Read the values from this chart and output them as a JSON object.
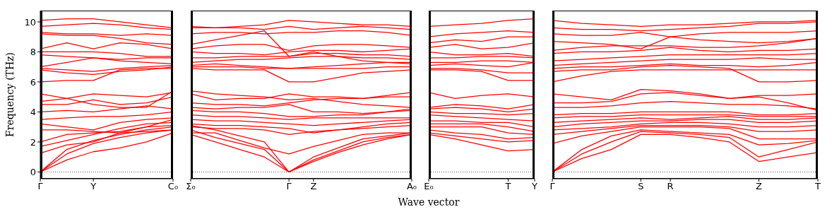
{
  "chart_data": [
    {
      "type": "line",
      "ylabel": "Frequency (THz)",
      "marker": "none",
      "line_style": "solid",
      "categories": [
        "Γ",
        null,
        "Y",
        null,
        null,
        "C₀"
      ],
      "ylim": [
        -0.45,
        10.75
      ],
      "yticks": [
        0,
        2,
        4,
        6,
        8,
        10
      ],
      "ref_lines": [
        {
          "axis": "y",
          "value": 0,
          "color": "#000000",
          "line_style": "dotted"
        }
      ],
      "series": [
        {
          "color": "#ff0000",
          "values": [
            0,
            0.8,
            1.35,
            1.6,
            2.0,
            2.6
          ]
        },
        {
          "color": "#ff0000",
          "values": [
            0,
            1.2,
            1.9,
            2.3,
            2.6,
            2.8
          ]
        },
        {
          "color": "#ff0000",
          "values": [
            0,
            1.5,
            2.1,
            2.5,
            2.8,
            3.0
          ]
        },
        {
          "color": "#ff0000",
          "values": [
            1.25,
            1.8,
            2.0,
            2.6,
            3.0,
            3.1
          ]
        },
        {
          "color": "#ff0000",
          "values": [
            1.7,
            2.1,
            2.5,
            2.9,
            3.2,
            3.3
          ]
        },
        {
          "color": "#ff0000",
          "values": [
            2.0,
            2.5,
            2.6,
            2.7,
            3.0,
            3.5
          ]
        },
        {
          "color": "#ff0000",
          "values": [
            2.8,
            2.8,
            2.7,
            2.6,
            2.7,
            2.8
          ]
        },
        {
          "color": "#ff0000",
          "values": [
            3.2,
            3.0,
            2.8,
            3.3,
            3.5,
            3.6
          ]
        },
        {
          "color": "#ff0000",
          "values": [
            3.5,
            3.6,
            3.7,
            3.7,
            3.8,
            4.0
          ]
        },
        {
          "color": "#ff0000",
          "values": [
            4.0,
            4.1,
            4.0,
            4.2,
            4.4,
            4.2
          ]
        },
        {
          "color": "#ff0000",
          "values": [
            4.5,
            4.5,
            4.8,
            4.5,
            4.6,
            5.0
          ]
        },
        {
          "color": "#ff0000",
          "values": [
            4.7,
            4.9,
            5.2,
            5.1,
            5.0,
            5.3
          ]
        },
        {
          "color": "#ff0000",
          "values": [
            5.2,
            4.9,
            4.5,
            4.3,
            4.3,
            5.4
          ]
        },
        {
          "color": "#ff0000",
          "values": [
            6.0,
            6.1,
            6.1,
            6.8,
            6.9,
            6.9
          ]
        },
        {
          "color": "#ff0000",
          "values": [
            6.8,
            6.6,
            6.5,
            6.7,
            6.8,
            7.0
          ]
        },
        {
          "color": "#ff0000",
          "values": [
            6.9,
            6.8,
            6.7,
            6.9,
            7.0,
            7.1
          ]
        },
        {
          "color": "#ff0000",
          "values": [
            7.0,
            7.3,
            7.6,
            7.4,
            7.3,
            7.2
          ]
        },
        {
          "color": "#ff0000",
          "values": [
            7.8,
            7.7,
            7.6,
            7.5,
            7.6,
            7.6
          ]
        },
        {
          "color": "#ff0000",
          "values": [
            8.0,
            8.0,
            8.0,
            7.9,
            7.7,
            7.7
          ]
        },
        {
          "color": "#ff0000",
          "values": [
            8.2,
            8.6,
            8.2,
            8.6,
            8.5,
            8.2
          ]
        },
        {
          "color": "#ff0000",
          "values": [
            9.2,
            9.1,
            9.1,
            8.9,
            8.6,
            8.5
          ]
        },
        {
          "color": "#ff0000",
          "values": [
            9.3,
            9.2,
            9.2,
            9.1,
            9.2,
            9.1
          ]
        },
        {
          "color": "#ff0000",
          "values": [
            9.7,
            9.8,
            9.9,
            9.8,
            9.6,
            9.5
          ]
        },
        {
          "color": "#ff0000",
          "values": [
            10.1,
            10.2,
            10.2,
            10.0,
            9.8,
            9.6
          ]
        }
      ]
    },
    {
      "type": "line",
      "xlabel": "Wave vector",
      "marker": "none",
      "line_style": "solid",
      "tick_labels": "x",
      "categories": [
        "Σ₀",
        null,
        null,
        null,
        "Γ",
        "Z",
        null,
        null,
        null,
        "A₀"
      ],
      "ylim": [
        -0.45,
        10.75
      ],
      "yticks": [
        0,
        2,
        4,
        6,
        8,
        10
      ],
      "ref_lines": [
        {
          "axis": "y",
          "value": 0,
          "color": "#000000",
          "line_style": "dotted"
        }
      ],
      "series": [
        {
          "color": "#ff0000",
          "values": [
            2.5,
            2.0,
            1.5,
            1.0,
            0,
            0.8,
            1.4,
            2.0,
            2.3,
            2.5
          ]
        },
        {
          "color": "#ff0000",
          "values": [
            2.8,
            2.3,
            1.9,
            1.5,
            0,
            1.0,
            1.6,
            2.2,
            2.4,
            2.6
          ]
        },
        {
          "color": "#ff0000",
          "values": [
            3.1,
            2.8,
            2.4,
            2.0,
            0,
            0.7,
            1.3,
            1.8,
            2.2,
            2.5
          ]
        },
        {
          "color": "#ff0000",
          "values": [
            2.6,
            2.6,
            2.1,
            1.6,
            1.2,
            1.7,
            2.1,
            2.5,
            2.6,
            2.6
          ]
        },
        {
          "color": "#ff0000",
          "values": [
            3.0,
            2.9,
            2.9,
            2.8,
            2.5,
            2.7,
            2.8,
            2.9,
            3.0,
            3.1
          ]
        },
        {
          "color": "#ff0000",
          "values": [
            3.2,
            3.1,
            3.1,
            3.0,
            2.9,
            2.6,
            2.8,
            3.0,
            3.2,
            3.3
          ]
        },
        {
          "color": "#ff0000",
          "values": [
            3.5,
            3.4,
            3.4,
            3.3,
            3.2,
            3.1,
            3.2,
            3.3,
            3.4,
            3.5
          ]
        },
        {
          "color": "#ff0000",
          "values": [
            3.8,
            3.7,
            3.7,
            3.6,
            3.5,
            3.6,
            3.6,
            3.6,
            3.6,
            3.6
          ]
        },
        {
          "color": "#ff0000",
          "values": [
            4.1,
            4.0,
            4.0,
            3.9,
            3.7,
            3.7,
            3.8,
            3.8,
            4.0,
            4.2
          ]
        },
        {
          "color": "#ff0000",
          "values": [
            4.3,
            4.2,
            4.3,
            4.3,
            4.5,
            4.0,
            4.0,
            3.9,
            4.0,
            4.1
          ]
        },
        {
          "color": "#ff0000",
          "values": [
            4.6,
            4.5,
            4.5,
            4.4,
            4.6,
            4.8,
            4.9,
            4.9,
            5.0,
            5.0
          ]
        },
        {
          "color": "#ff0000",
          "values": [
            5.2,
            4.8,
            4.9,
            4.9,
            5.2,
            5.0,
            5.0,
            4.9,
            5.1,
            5.3
          ]
        },
        {
          "color": "#ff0000",
          "values": [
            5.4,
            5.2,
            5.1,
            5.0,
            4.8,
            4.9,
            4.7,
            4.5,
            4.4,
            4.3
          ]
        },
        {
          "color": "#ff0000",
          "values": [
            6.9,
            6.8,
            6.8,
            6.8,
            6.0,
            6.0,
            6.3,
            6.6,
            6.7,
            6.8
          ]
        },
        {
          "color": "#ff0000",
          "values": [
            7.0,
            7.0,
            7.0,
            6.9,
            6.9,
            6.9,
            6.9,
            6.9,
            7.0,
            7.0
          ]
        },
        {
          "color": "#ff0000",
          "values": [
            7.1,
            7.2,
            7.1,
            7.0,
            6.9,
            7.0,
            7.1,
            7.2,
            7.3,
            7.3
          ]
        },
        {
          "color": "#ff0000",
          "values": [
            7.3,
            7.4,
            7.5,
            7.5,
            7.6,
            7.7,
            7.7,
            7.6,
            7.6,
            7.5
          ]
        },
        {
          "color": "#ff0000",
          "values": [
            7.6,
            7.6,
            7.7,
            7.7,
            7.7,
            7.9,
            7.9,
            7.8,
            7.8,
            7.7
          ]
        },
        {
          "color": "#ff0000",
          "values": [
            8.0,
            7.9,
            7.9,
            7.8,
            8.0,
            8.1,
            8.1,
            8.0,
            8.1,
            8.2
          ]
        },
        {
          "color": "#ff0000",
          "values": [
            8.2,
            8.4,
            8.5,
            8.5,
            8.1,
            8.4,
            8.5,
            8.5,
            8.4,
            8.3
          ]
        },
        {
          "color": "#ff0000",
          "values": [
            8.5,
            8.8,
            9.1,
            9.4,
            7.7,
            8.0,
            7.7,
            7.4,
            7.3,
            7.2
          ]
        },
        {
          "color": "#ff0000",
          "values": [
            9.2,
            9.3,
            9.3,
            9.2,
            9.3,
            9.3,
            9.4,
            9.4,
            9.3,
            9.1
          ]
        },
        {
          "color": "#ff0000",
          "values": [
            9.6,
            9.6,
            9.6,
            9.5,
            9.7,
            9.5,
            9.6,
            9.7,
            9.6,
            9.5
          ]
        },
        {
          "color": "#ff0000",
          "values": [
            9.7,
            9.6,
            9.7,
            9.8,
            10.1,
            10.0,
            9.9,
            9.8,
            9.8,
            9.7
          ]
        }
      ]
    },
    {
      "type": "line",
      "marker": "none",
      "line_style": "solid",
      "tick_labels": "x",
      "categories": [
        "E₀",
        null,
        null,
        "T",
        "Y"
      ],
      "ylim": [
        -0.45,
        10.75
      ],
      "yticks": [
        0,
        2,
        4,
        6,
        8,
        10
      ],
      "ref_lines": [
        {
          "axis": "y",
          "value": 0,
          "color": "#000000",
          "line_style": "dotted"
        }
      ],
      "series": [
        {
          "color": "#ff0000",
          "values": [
            2.5,
            2.2,
            1.8,
            1.4,
            1.5
          ]
        },
        {
          "color": "#ff0000",
          "values": [
            2.6,
            2.4,
            2.2,
            2.0,
            2.1
          ]
        },
        {
          "color": "#ff0000",
          "values": [
            2.8,
            2.6,
            2.5,
            2.2,
            2.3
          ]
        },
        {
          "color": "#ff0000",
          "values": [
            3.0,
            3.0,
            3.0,
            2.6,
            2.5
          ]
        },
        {
          "color": "#ff0000",
          "values": [
            3.2,
            3.2,
            3.2,
            3.0,
            2.7
          ]
        },
        {
          "color": "#ff0000",
          "values": [
            3.4,
            3.4,
            3.3,
            3.3,
            3.0
          ]
        },
        {
          "color": "#ff0000",
          "values": [
            3.8,
            3.7,
            3.6,
            3.5,
            3.4
          ]
        },
        {
          "color": "#ff0000",
          "values": [
            4.0,
            3.9,
            3.9,
            3.8,
            3.9
          ]
        },
        {
          "color": "#ff0000",
          "values": [
            4.2,
            4.3,
            4.2,
            4.0,
            4.2
          ]
        },
        {
          "color": "#ff0000",
          "values": [
            4.3,
            4.5,
            4.4,
            4.2,
            4.5
          ]
        },
        {
          "color": "#ff0000",
          "values": [
            5.3,
            4.9,
            5.1,
            5.2,
            5.0
          ]
        },
        {
          "color": "#ff0000",
          "values": [
            6.8,
            6.8,
            6.7,
            6.1,
            6.1
          ]
        },
        {
          "color": "#ff0000",
          "values": [
            6.9,
            6.9,
            6.8,
            6.6,
            6.6
          ]
        },
        {
          "color": "#ff0000",
          "values": [
            7.1,
            7.2,
            7.1,
            7.0,
            7.3
          ]
        },
        {
          "color": "#ff0000",
          "values": [
            7.3,
            7.3,
            7.4,
            7.4,
            7.3
          ]
        },
        {
          "color": "#ff0000",
          "values": [
            7.6,
            7.6,
            7.7,
            7.7,
            7.6
          ]
        },
        {
          "color": "#ff0000",
          "values": [
            8.0,
            7.8,
            7.8,
            7.9,
            7.7
          ]
        },
        {
          "color": "#ff0000",
          "values": [
            8.3,
            8.5,
            8.2,
            8.3,
            8.6
          ]
        },
        {
          "color": "#ff0000",
          "values": [
            8.6,
            8.8,
            8.7,
            9.0,
            9.0
          ]
        },
        {
          "color": "#ff0000",
          "values": [
            9.0,
            9.2,
            9.3,
            9.4,
            9.3
          ]
        },
        {
          "color": "#ff0000",
          "values": [
            9.7,
            9.8,
            9.9,
            10.1,
            10.2
          ]
        }
      ]
    },
    {
      "type": "line",
      "marker": "none",
      "line_style": "solid",
      "tick_labels": "x",
      "categories": [
        "Γ",
        null,
        null,
        "S",
        "R",
        null,
        null,
        "Z",
        null,
        "T"
      ],
      "ylim": [
        -0.45,
        10.75
      ],
      "yticks": [
        0,
        2,
        4,
        6,
        8,
        10
      ],
      "ref_lines": [
        {
          "axis": "y",
          "value": 0,
          "color": "#000000",
          "line_style": "dotted"
        }
      ],
      "series": [
        {
          "color": "#ff0000",
          "values": [
            0,
            0.9,
            1.5,
            2.5,
            2.5,
            2.3,
            2.0,
            0.7,
            1.0,
            1.3
          ]
        },
        {
          "color": "#ff0000",
          "values": [
            0,
            1.2,
            2.0,
            2.7,
            2.6,
            2.5,
            2.3,
            1.0,
            1.5,
            2.0
          ]
        },
        {
          "color": "#ff0000",
          "values": [
            0,
            1.5,
            2.4,
            2.8,
            2.7,
            2.6,
            2.5,
            1.8,
            1.9,
            2.1
          ]
        },
        {
          "color": "#ff0000",
          "values": [
            1.9,
            2.4,
            2.7,
            3.0,
            3.0,
            3.0,
            2.9,
            2.2,
            2.2,
            2.2
          ]
        },
        {
          "color": "#ff0000",
          "values": [
            2.5,
            2.7,
            2.9,
            3.1,
            3.1,
            3.1,
            3.0,
            2.7,
            2.7,
            2.8
          ]
        },
        {
          "color": "#ff0000",
          "values": [
            2.8,
            2.9,
            3.0,
            3.2,
            3.3,
            3.3,
            3.2,
            3.0,
            3.0,
            3.1
          ]
        },
        {
          "color": "#ff0000",
          "values": [
            3.0,
            3.2,
            3.3,
            3.4,
            3.4,
            3.5,
            3.5,
            3.3,
            3.3,
            3.4
          ]
        },
        {
          "color": "#ff0000",
          "values": [
            3.3,
            3.4,
            3.5,
            3.6,
            3.5,
            3.6,
            3.7,
            3.5,
            3.5,
            3.6
          ]
        },
        {
          "color": "#ff0000",
          "values": [
            3.6,
            3.7,
            3.7,
            3.8,
            3.8,
            3.8,
            3.8,
            3.7,
            3.7,
            3.7
          ]
        },
        {
          "color": "#ff0000",
          "values": [
            3.8,
            3.9,
            3.9,
            4.0,
            4.0,
            4.0,
            4.0,
            3.8,
            3.8,
            3.9
          ]
        },
        {
          "color": "#ff0000",
          "values": [
            4.3,
            4.3,
            4.4,
            4.6,
            4.7,
            4.6,
            4.5,
            4.5,
            4.4,
            4.2
          ]
        },
        {
          "color": "#ff0000",
          "values": [
            4.6,
            4.6,
            4.7,
            5.2,
            5.3,
            5.1,
            4.9,
            5.0,
            4.6,
            4.1
          ]
        },
        {
          "color": "#ff0000",
          "values": [
            5.2,
            5.0,
            4.8,
            5.5,
            5.4,
            5.2,
            4.9,
            5.1,
            5.1,
            5.2
          ]
        },
        {
          "color": "#ff0000",
          "values": [
            6.0,
            6.4,
            6.7,
            6.8,
            6.8,
            6.8,
            6.8,
            6.8,
            6.8,
            6.8
          ]
        },
        {
          "color": "#ff0000",
          "values": [
            6.7,
            6.8,
            6.8,
            7.0,
            7.1,
            7.0,
            6.9,
            6.0,
            6.0,
            6.1
          ]
        },
        {
          "color": "#ff0000",
          "values": [
            6.9,
            7.0,
            7.0,
            7.1,
            7.2,
            7.1,
            7.1,
            7.0,
            7.1,
            7.3
          ]
        },
        {
          "color": "#ff0000",
          "values": [
            7.1,
            7.2,
            7.3,
            7.4,
            7.5,
            7.5,
            7.5,
            7.6,
            7.5,
            7.5
          ]
        },
        {
          "color": "#ff0000",
          "values": [
            7.4,
            7.5,
            7.6,
            7.7,
            7.8,
            7.8,
            7.8,
            7.8,
            7.8,
            7.9
          ]
        },
        {
          "color": "#ff0000",
          "values": [
            7.9,
            8.0,
            8.0,
            8.1,
            8.3,
            8.1,
            8.0,
            8.1,
            8.1,
            8.2
          ]
        },
        {
          "color": "#ff0000",
          "values": [
            8.1,
            8.3,
            8.4,
            8.4,
            8.4,
            8.3,
            8.3,
            8.4,
            8.6,
            8.9
          ]
        },
        {
          "color": "#ff0000",
          "values": [
            8.7,
            8.6,
            8.5,
            8.2,
            9.0,
            8.8,
            8.7,
            8.6,
            8.7,
            8.9
          ]
        },
        {
          "color": "#ff0000",
          "values": [
            9.2,
            9.1,
            9.1,
            9.3,
            9.0,
            9.2,
            9.3,
            9.3,
            9.3,
            9.4
          ]
        },
        {
          "color": "#ff0000",
          "values": [
            9.6,
            9.5,
            9.5,
            9.4,
            9.5,
            9.6,
            9.7,
            9.9,
            9.9,
            10.0
          ]
        },
        {
          "color": "#ff0000",
          "values": [
            10.1,
            9.9,
            9.8,
            9.7,
            9.8,
            9.8,
            9.9,
            10.0,
            10.0,
            10.1
          ]
        }
      ]
    }
  ]
}
